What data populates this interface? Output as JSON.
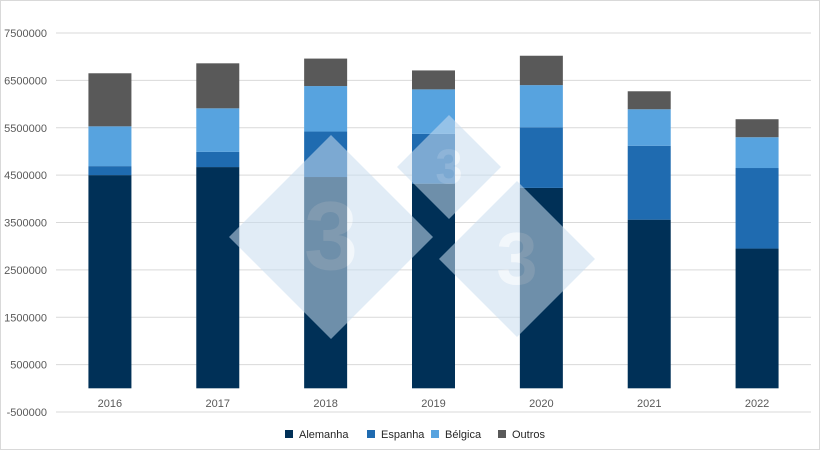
{
  "chart_data": {
    "type": "bar",
    "stacked": true,
    "categories": [
      "2016",
      "2017",
      "2018",
      "2019",
      "2020",
      "2021",
      "2022"
    ],
    "series": [
      {
        "name": "Alemanha",
        "color": "#003057",
        "values": [
          4500000,
          4670000,
          4460000,
          4320000,
          4230000,
          3560000,
          2950000
        ]
      },
      {
        "name": "Espanha",
        "color": "#1f6bb0",
        "values": [
          190000,
          320000,
          960000,
          1050000,
          1280000,
          1560000,
          1700000
        ]
      },
      {
        "name": "Bélgica",
        "color": "#57a3df",
        "values": [
          840000,
          920000,
          960000,
          940000,
          890000,
          770000,
          650000
        ]
      },
      {
        "name": "Outros",
        "color": "#595959",
        "values": [
          1120000,
          950000,
          580000,
          400000,
          620000,
          380000,
          380000
        ]
      }
    ],
    "yticks": [
      "7500000",
      "6500000",
      "5500000",
      "4500000",
      "3500000",
      "2500000",
      "1500000",
      "500000",
      "-500000"
    ],
    "ylim": [
      -500000,
      7500000
    ],
    "grid": true,
    "legend_position": "bottom",
    "title": "",
    "xlabel": "",
    "ylabel": ""
  },
  "watermark": {
    "text": "3",
    "color": "#c9ddef"
  }
}
